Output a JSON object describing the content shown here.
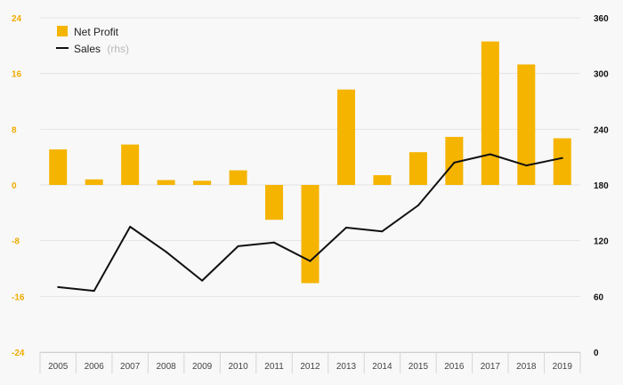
{
  "chart_data": {
    "type": "bar",
    "categories": [
      "2005",
      "2006",
      "2007",
      "2008",
      "2009",
      "2010",
      "2011",
      "2012",
      "2013",
      "2014",
      "2015",
      "2016",
      "2017",
      "2018",
      "2019"
    ],
    "series": [
      {
        "name": "Net Profit",
        "type": "bar",
        "axis": "left",
        "color": "#f5b400",
        "values": [
          5.1,
          0.8,
          5.8,
          0.7,
          0.6,
          2.1,
          -5.0,
          -14.1,
          13.7,
          1.4,
          4.7,
          6.9,
          20.6,
          17.3,
          6.7
        ]
      },
      {
        "name": "Sales",
        "suffix": "(rhs)",
        "type": "line",
        "axis": "right",
        "color": "#111111",
        "values": [
          70,
          66,
          135,
          108,
          77,
          114,
          118,
          98,
          134,
          130,
          158,
          204,
          213,
          201,
          209
        ]
      }
    ],
    "y_left": {
      "ticks": [
        "24",
        "16",
        "8",
        "0",
        "-8",
        "-16",
        "-24"
      ],
      "range": [
        -24,
        24
      ],
      "color": "#f0ab00"
    },
    "y_right": {
      "ticks": [
        "360",
        "300",
        "240",
        "180",
        "120",
        "60",
        "0"
      ],
      "range": [
        0,
        360
      ],
      "color": "#111111"
    },
    "grid": true,
    "legend_position": "top-left"
  }
}
